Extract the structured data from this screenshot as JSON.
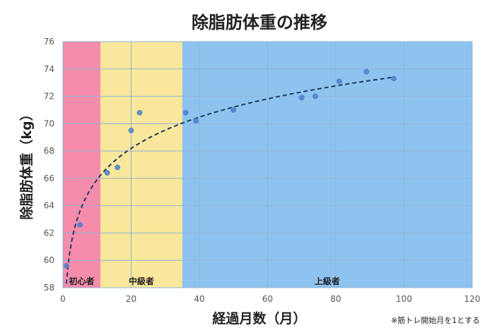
{
  "chart_data": {
    "type": "scatter",
    "title": "除脂肪体重の推移",
    "xlabel": "経過月数（月）",
    "ylabel": "除脂肪体重（kg）",
    "xlim": [
      0,
      120
    ],
    "ylim": [
      58,
      76
    ],
    "x_ticks": [
      "0",
      "20",
      "40",
      "60",
      "80",
      "100",
      "120"
    ],
    "y_ticks": [
      "58",
      "60",
      "62",
      "64",
      "66",
      "68",
      "70",
      "72",
      "74",
      "76"
    ],
    "grid": true,
    "bands": [
      {
        "label": "初心者",
        "x_start": 0,
        "x_end": 11,
        "color": "#f58cab"
      },
      {
        "label": "中級者",
        "x_start": 11,
        "x_end": 35,
        "color": "#f9e79b"
      },
      {
        "label": "上級者",
        "x_start": 35,
        "x_end": 120,
        "color": "#8fc3ef"
      }
    ],
    "series": [
      {
        "marker_color": "#4a7fc9",
        "points": [
          {
            "x": 1,
            "y": 59.6
          },
          {
            "x": 5,
            "y": 62.6
          },
          {
            "x": 13,
            "y": 66.4
          },
          {
            "x": 16,
            "y": 66.8
          },
          {
            "x": 20,
            "y": 69.5
          },
          {
            "x": 22.5,
            "y": 70.8
          },
          {
            "x": 36,
            "y": 70.8
          },
          {
            "x": 39,
            "y": 70.2
          },
          {
            "x": 50,
            "y": 71.0
          },
          {
            "x": 70,
            "y": 71.9
          },
          {
            "x": 74,
            "y": 72.0
          },
          {
            "x": 81,
            "y": 73.1
          },
          {
            "x": 89,
            "y": 73.8
          },
          {
            "x": 97,
            "y": 73.3
          }
        ]
      }
    ],
    "trendline": {
      "type": "logarithmic",
      "style": "dashed",
      "color": "#1f3a60",
      "x_range": [
        1,
        97
      ],
      "a": 3.3,
      "b": 58.3
    },
    "note": "※筋トレ開始月を1とする"
  }
}
